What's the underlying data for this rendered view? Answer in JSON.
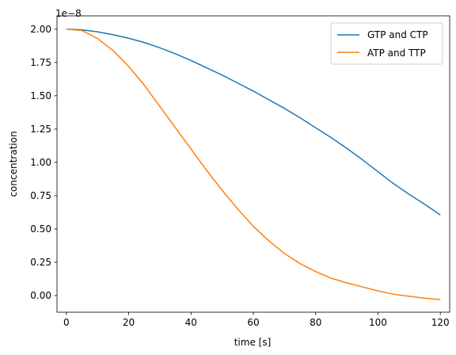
{
  "chart_data": {
    "type": "line",
    "title": "",
    "xlabel": "time [s]",
    "ylabel": "concentration",
    "y_offset_label": "1e−8",
    "xlim": [
      -3,
      123
    ],
    "ylim": [
      -0.125,
      2.1
    ],
    "x_ticks": [
      0,
      20,
      40,
      60,
      80,
      100,
      120
    ],
    "x_tick_labels": [
      "0",
      "20",
      "40",
      "60",
      "80",
      "100",
      "120"
    ],
    "y_ticks": [
      0.0,
      0.25,
      0.5,
      0.75,
      1.0,
      1.25,
      1.5,
      1.75,
      2.0
    ],
    "y_tick_labels": [
      "0.00",
      "0.25",
      "0.50",
      "0.75",
      "1.00",
      "1.25",
      "1.50",
      "1.75",
      "2.00"
    ],
    "grid": false,
    "legend_position": "top-right",
    "series": [
      {
        "name": "GTP and CTP",
        "color": "#1f77b4",
        "x": [
          0,
          5,
          10,
          15,
          20,
          25,
          30,
          35,
          40,
          45,
          50,
          55,
          60,
          65,
          70,
          75,
          80,
          85,
          90,
          95,
          100,
          105,
          110,
          115,
          120
        ],
        "y": [
          2.0,
          1.995,
          1.98,
          1.958,
          1.932,
          1.9,
          1.86,
          1.815,
          1.765,
          1.71,
          1.655,
          1.595,
          1.535,
          1.47,
          1.405,
          1.335,
          1.26,
          1.185,
          1.105,
          1.02,
          0.93,
          0.84,
          0.76,
          0.685,
          0.605
        ]
      },
      {
        "name": "ATP and TTP",
        "color": "#ff7f0e",
        "x": [
          0,
          5,
          10,
          15,
          20,
          25,
          30,
          35,
          40,
          45,
          50,
          55,
          60,
          65,
          70,
          75,
          80,
          85,
          90,
          95,
          100,
          105,
          110,
          115,
          120
        ],
        "y": [
          2.0,
          1.99,
          1.93,
          1.84,
          1.72,
          1.58,
          1.42,
          1.26,
          1.1,
          0.94,
          0.79,
          0.65,
          0.52,
          0.41,
          0.315,
          0.24,
          0.18,
          0.13,
          0.095,
          0.065,
          0.035,
          0.01,
          -0.005,
          -0.02,
          -0.03
        ]
      }
    ]
  }
}
